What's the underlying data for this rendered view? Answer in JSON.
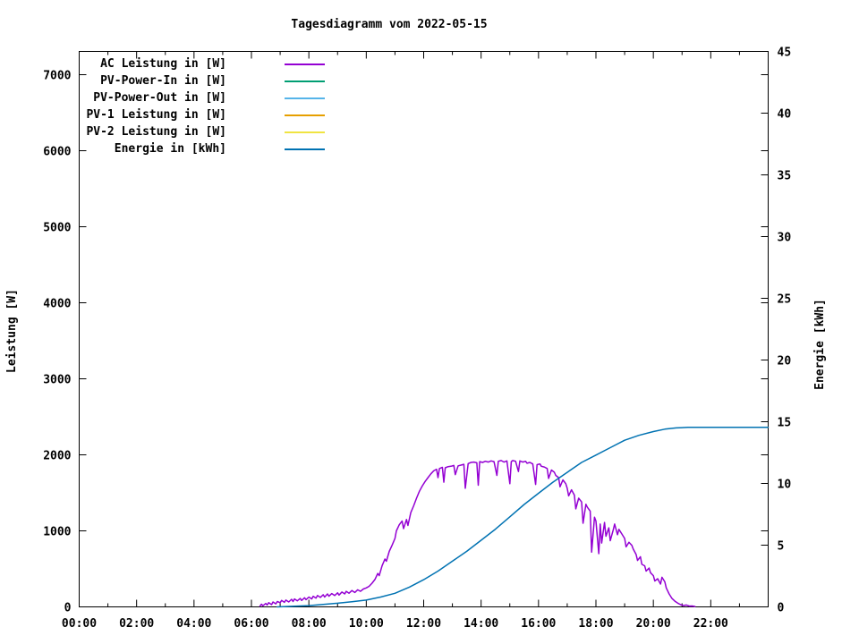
{
  "chart": {
    "title": "Tagesdiagramm vom 2022-05-15",
    "y_left_label": "Leistung [W]",
    "y_right_label": "Energie [kWh]"
  },
  "legend": [
    {
      "label": "AC Leistung in [W]",
      "color": "#9400D3"
    },
    {
      "label": "PV-Power-In in [W]",
      "color": "#009E73"
    },
    {
      "label": "PV-Power-Out in [W]",
      "color": "#56B4E9"
    },
    {
      "label": "PV-1 Leistung in [W]",
      "color": "#E69F00"
    },
    {
      "label": "PV-2 Leistung in [W]",
      "color": "#F0E442"
    },
    {
      "label": "Energie in [kWh]",
      "color": "#0072B2"
    }
  ],
  "chart_data": {
    "type": "line",
    "title": "Tagesdiagramm vom 2022-05-15",
    "xlabel": "",
    "ylabel_left": "Leistung [W]",
    "ylabel_right": "Energie [kWh]",
    "x_axis": {
      "range_hours": [
        0,
        24
      ],
      "tick_hours": [
        0,
        2,
        4,
        6,
        8,
        10,
        12,
        14,
        16,
        18,
        20,
        22
      ],
      "tick_labels": [
        "00:00",
        "02:00",
        "04:00",
        "06:00",
        "08:00",
        "10:00",
        "12:00",
        "14:00",
        "16:00",
        "18:00",
        "20:00",
        "22:00"
      ],
      "minor_tick_hours": [
        1,
        3,
        5,
        7,
        9,
        11,
        13,
        15,
        17,
        19,
        21,
        23
      ]
    },
    "y_left_axis": {
      "label": "Leistung [W]",
      "range": [
        0,
        7300
      ],
      "tick_values": [
        0,
        1000,
        2000,
        3000,
        4000,
        5000,
        6000,
        7000
      ],
      "tick_labels": [
        "0",
        "1000",
        "2000",
        "3000",
        "4000",
        "5000",
        "6000",
        "7000"
      ]
    },
    "y_right_axis": {
      "label": "Energie [kWh]",
      "range": [
        0,
        45
      ],
      "tick_values": [
        0,
        5,
        10,
        15,
        20,
        25,
        30,
        35,
        40,
        45
      ],
      "tick_labels": [
        "0",
        "5",
        "10",
        "15",
        "20",
        "25",
        "30",
        "35",
        "40",
        "45"
      ]
    },
    "grid": false,
    "legend_position": "top-left-inside",
    "series": [
      {
        "name": "AC Leistung in [W]",
        "color": "#9400D3",
        "axis": "left",
        "unit": "W",
        "visible": true,
        "points": [
          [
            6.3,
            10
          ],
          [
            6.35,
            35
          ],
          [
            6.4,
            15
          ],
          [
            6.5,
            45
          ],
          [
            6.55,
            25
          ],
          [
            6.6,
            55
          ],
          [
            6.7,
            30
          ],
          [
            6.75,
            65
          ],
          [
            6.85,
            40
          ],
          [
            6.9,
            70
          ],
          [
            7.0,
            55
          ],
          [
            7.05,
            85
          ],
          [
            7.15,
            60
          ],
          [
            7.2,
            90
          ],
          [
            7.3,
            65
          ],
          [
            7.4,
            100
          ],
          [
            7.45,
            70
          ],
          [
            7.5,
            105
          ],
          [
            7.6,
            80
          ],
          [
            7.7,
            110
          ],
          [
            7.75,
            85
          ],
          [
            7.85,
            120
          ],
          [
            7.9,
            95
          ],
          [
            8.0,
            130
          ],
          [
            8.1,
            105
          ],
          [
            8.15,
            140
          ],
          [
            8.25,
            115
          ],
          [
            8.3,
            150
          ],
          [
            8.4,
            125
          ],
          [
            8.5,
            160
          ],
          [
            8.55,
            130
          ],
          [
            8.65,
            170
          ],
          [
            8.7,
            140
          ],
          [
            8.8,
            175
          ],
          [
            8.9,
            150
          ],
          [
            9.0,
            185
          ],
          [
            9.05,
            155
          ],
          [
            9.15,
            195
          ],
          [
            9.25,
            170
          ],
          [
            9.3,
            205
          ],
          [
            9.4,
            180
          ],
          [
            9.5,
            215
          ],
          [
            9.6,
            190
          ],
          [
            9.7,
            225
          ],
          [
            9.8,
            205
          ],
          [
            9.9,
            235
          ],
          [
            10.0,
            250
          ],
          [
            10.1,
            270
          ],
          [
            10.2,
            310
          ],
          [
            10.3,
            360
          ],
          [
            10.4,
            440
          ],
          [
            10.45,
            410
          ],
          [
            10.55,
            540
          ],
          [
            10.65,
            630
          ],
          [
            10.7,
            600
          ],
          [
            10.8,
            730
          ],
          [
            10.9,
            810
          ],
          [
            11.0,
            900
          ],
          [
            11.05,
            1000
          ],
          [
            11.15,
            1080
          ],
          [
            11.25,
            1130
          ],
          [
            11.3,
            1030
          ],
          [
            11.4,
            1150
          ],
          [
            11.45,
            1070
          ],
          [
            11.55,
            1240
          ],
          [
            11.65,
            1330
          ],
          [
            11.75,
            1430
          ],
          [
            11.85,
            1520
          ],
          [
            11.95,
            1590
          ],
          [
            12.05,
            1650
          ],
          [
            12.15,
            1700
          ],
          [
            12.25,
            1750
          ],
          [
            12.35,
            1790
          ],
          [
            12.45,
            1810
          ],
          [
            12.5,
            1700
          ],
          [
            12.55,
            1820
          ],
          [
            12.65,
            1835
          ],
          [
            12.7,
            1640
          ],
          [
            12.75,
            1830
          ],
          [
            12.85,
            1845
          ],
          [
            12.95,
            1850
          ],
          [
            13.05,
            1860
          ],
          [
            13.1,
            1740
          ],
          [
            13.2,
            1855
          ],
          [
            13.3,
            1865
          ],
          [
            13.4,
            1875
          ],
          [
            13.45,
            1560
          ],
          [
            13.55,
            1885
          ],
          [
            13.65,
            1900
          ],
          [
            13.75,
            1905
          ],
          [
            13.85,
            1895
          ],
          [
            13.9,
            1600
          ],
          [
            13.95,
            1910
          ],
          [
            14.05,
            1900
          ],
          [
            14.15,
            1915
          ],
          [
            14.25,
            1905
          ],
          [
            14.35,
            1920
          ],
          [
            14.45,
            1910
          ],
          [
            14.55,
            1730
          ],
          [
            14.6,
            1915
          ],
          [
            14.7,
            1925
          ],
          [
            14.8,
            1905
          ],
          [
            14.9,
            1920
          ],
          [
            15.0,
            1620
          ],
          [
            15.05,
            1910
          ],
          [
            15.1,
            1925
          ],
          [
            15.2,
            1915
          ],
          [
            15.3,
            1780
          ],
          [
            15.35,
            1920
          ],
          [
            15.45,
            1905
          ],
          [
            15.55,
            1915
          ],
          [
            15.6,
            1890
          ],
          [
            15.7,
            1900
          ],
          [
            15.8,
            1880
          ],
          [
            15.9,
            1610
          ],
          [
            15.95,
            1870
          ],
          [
            16.05,
            1880
          ],
          [
            16.1,
            1850
          ],
          [
            16.2,
            1840
          ],
          [
            16.3,
            1820
          ],
          [
            16.35,
            1690
          ],
          [
            16.45,
            1800
          ],
          [
            16.55,
            1770
          ],
          [
            16.6,
            1730
          ],
          [
            16.7,
            1700
          ],
          [
            16.75,
            1580
          ],
          [
            16.85,
            1670
          ],
          [
            16.95,
            1620
          ],
          [
            17.0,
            1560
          ],
          [
            17.05,
            1460
          ],
          [
            17.15,
            1540
          ],
          [
            17.25,
            1470
          ],
          [
            17.3,
            1290
          ],
          [
            17.4,
            1430
          ],
          [
            17.5,
            1380
          ],
          [
            17.55,
            1100
          ],
          [
            17.65,
            1350
          ],
          [
            17.7,
            1310
          ],
          [
            17.8,
            1260
          ],
          [
            17.85,
            720
          ],
          [
            17.95,
            1180
          ],
          [
            18.0,
            1130
          ],
          [
            18.1,
            700
          ],
          [
            18.15,
            1090
          ],
          [
            18.2,
            840
          ],
          [
            18.3,
            1110
          ],
          [
            18.35,
            930
          ],
          [
            18.45,
            1040
          ],
          [
            18.5,
            870
          ],
          [
            18.6,
            1010
          ],
          [
            18.65,
            1090
          ],
          [
            18.75,
            950
          ],
          [
            18.8,
            1020
          ],
          [
            18.9,
            960
          ],
          [
            19.0,
            900
          ],
          [
            19.05,
            790
          ],
          [
            19.15,
            850
          ],
          [
            19.25,
            810
          ],
          [
            19.3,
            760
          ],
          [
            19.4,
            690
          ],
          [
            19.45,
            610
          ],
          [
            19.55,
            660
          ],
          [
            19.6,
            560
          ],
          [
            19.7,
            540
          ],
          [
            19.75,
            470
          ],
          [
            19.85,
            510
          ],
          [
            19.9,
            450
          ],
          [
            20.0,
            410
          ],
          [
            20.05,
            340
          ],
          [
            20.15,
            370
          ],
          [
            20.25,
            300
          ],
          [
            20.3,
            390
          ],
          [
            20.4,
            330
          ],
          [
            20.45,
            250
          ],
          [
            20.55,
            170
          ],
          [
            20.65,
            110
          ],
          [
            20.75,
            75
          ],
          [
            20.85,
            50
          ],
          [
            20.95,
            30
          ],
          [
            21.05,
            18
          ],
          [
            21.15,
            25
          ],
          [
            21.25,
            10
          ],
          [
            21.35,
            12
          ],
          [
            21.45,
            5
          ]
        ]
      },
      {
        "name": "PV-Power-In in [W]",
        "color": "#009E73",
        "axis": "left",
        "unit": "W",
        "visible": false,
        "points": []
      },
      {
        "name": "PV-Power-Out in [W]",
        "color": "#56B4E9",
        "axis": "left",
        "unit": "W",
        "visible": false,
        "points": []
      },
      {
        "name": "PV-1 Leistung in [W]",
        "color": "#E69F00",
        "axis": "left",
        "unit": "W",
        "visible": false,
        "points": []
      },
      {
        "name": "PV-2 Leistung in [W]",
        "color": "#F0E442",
        "axis": "left",
        "unit": "W",
        "visible": false,
        "points": []
      },
      {
        "name": "Energie in [kWh]",
        "color": "#0072B2",
        "axis": "right",
        "unit": "kWh",
        "visible": true,
        "points": [
          [
            6.9,
            0.0
          ],
          [
            7.5,
            0.05
          ],
          [
            8.0,
            0.1
          ],
          [
            8.5,
            0.2
          ],
          [
            9.0,
            0.3
          ],
          [
            9.5,
            0.42
          ],
          [
            10.0,
            0.55
          ],
          [
            10.5,
            0.8
          ],
          [
            11.0,
            1.1
          ],
          [
            11.5,
            1.6
          ],
          [
            12.0,
            2.2
          ],
          [
            12.5,
            2.9
          ],
          [
            13.0,
            3.7
          ],
          [
            13.5,
            4.5
          ],
          [
            14.0,
            5.4
          ],
          [
            14.5,
            6.3
          ],
          [
            15.0,
            7.3
          ],
          [
            15.5,
            8.3
          ],
          [
            16.0,
            9.2
          ],
          [
            16.5,
            10.1
          ],
          [
            17.0,
            10.9
          ],
          [
            17.5,
            11.7
          ],
          [
            18.0,
            12.3
          ],
          [
            18.5,
            12.9
          ],
          [
            19.0,
            13.5
          ],
          [
            19.5,
            13.9
          ],
          [
            20.0,
            14.2
          ],
          [
            20.4,
            14.4
          ],
          [
            20.8,
            14.5
          ],
          [
            21.2,
            14.54
          ],
          [
            21.6,
            14.55
          ],
          [
            24.0,
            14.55
          ]
        ]
      }
    ]
  }
}
